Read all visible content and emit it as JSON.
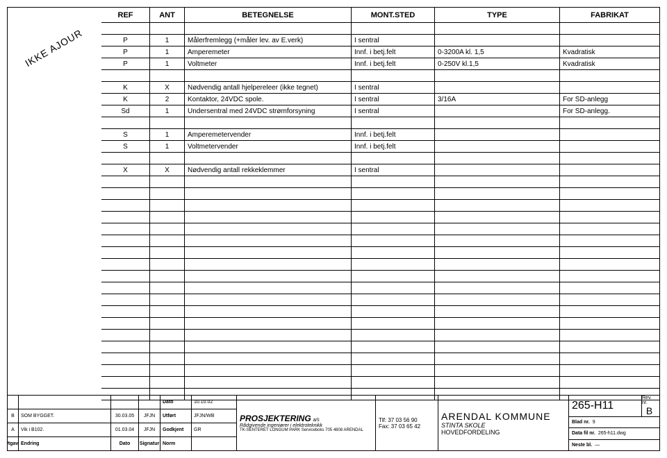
{
  "stamp_text": "IKKE AJOUR",
  "columns": {
    "ref": "REF",
    "ant": "ANT",
    "betegnelse": "BETEGNELSE",
    "mont_sted": "MONT.STED",
    "type": "TYPE",
    "fabrikat": "FABRIKAT"
  },
  "groups": [
    {
      "rows": [
        {
          "ref": "P",
          "ant": "1",
          "bet": "Målerfremlegg (+måler lev. av E.verk)",
          "mont": "I sentral",
          "type": "",
          "fab": ""
        },
        {
          "ref": "P",
          "ant": "1",
          "bet": "Amperemeter",
          "mont": "Innf. i betj.felt",
          "type": "0-3200A kl. 1,5",
          "fab": "Kvadratisk"
        },
        {
          "ref": "P",
          "ant": "1",
          "bet": "Voltmeter",
          "mont": "Innf. i betj.felt",
          "type": "0-250V kl.1,5",
          "fab": "Kvadratisk"
        }
      ]
    },
    {
      "rows": [
        {
          "ref": "K",
          "ant": "X",
          "bet": "Nødvendig antall hjelpereleer (ikke tegnet)",
          "mont": "I sentral",
          "type": "",
          "fab": ""
        },
        {
          "ref": "K",
          "ant": "2",
          "bet": "Kontaktor, 24VDC spole.",
          "mont": "I sentral",
          "type": "3/16A",
          "fab": "For SD-anlegg"
        },
        {
          "ref": "Sd",
          "ant": "1",
          "bet": "Undersentral med 24VDC strømforsyning",
          "mont": "I sentral",
          "type": "",
          "fab": "For SD-anlegg."
        }
      ]
    },
    {
      "rows": [
        {
          "ref": "S",
          "ant": "1",
          "bet": "Amperemetervender",
          "mont": "Innf. i betj.felt",
          "type": "",
          "fab": ""
        },
        {
          "ref": "S",
          "ant": "1",
          "bet": "Voltmetervender",
          "mont": "Innf. i betj.felt",
          "type": "",
          "fab": ""
        }
      ]
    },
    {
      "rows": [
        {
          "ref": "X",
          "ant": "X",
          "bet": "Nødvendig antall rekkeklemmer",
          "mont": "I sentral",
          "type": "",
          "fab": ""
        }
      ]
    }
  ],
  "empty_rows_after": 18,
  "revisions": {
    "header": {
      "a": "Utgave",
      "b": "Endring",
      "c": "Dato",
      "d": "Signatur"
    },
    "rows": [
      {
        "a": "",
        "b": "",
        "c": "",
        "d": ""
      },
      {
        "a": "B",
        "b": "SOM BYGGET.",
        "c": "30.03.05",
        "d": "JFJN"
      },
      {
        "a": "A",
        "b": "Vik i B102.",
        "c": "01.03.04",
        "d": "JFJN"
      }
    ]
  },
  "approve": {
    "rows": [
      {
        "label": "Dato",
        "val": "10.10.02"
      },
      {
        "label": "Utført",
        "val": "JFJN/WB"
      },
      {
        "label": "Godkjent",
        "val": "GR"
      },
      {
        "label": "Norm",
        "val": ""
      }
    ]
  },
  "company": {
    "name": "PROSJEKTERING",
    "suffix": "a/s",
    "sub": "Rådgivende ingeniører i elektroteknikk",
    "addr": "TK-SENTERET LONGUM PARK Serviceboks 705 4808 ARENDAL"
  },
  "contact": {
    "tlf": "Tlf: 37 03 56 90",
    "fax": "Fax: 37 03 65 42"
  },
  "project": {
    "main": "ARENDAL KOMMUNE",
    "sub": "STINTA SKOLE",
    "sub2": "HOVEDFORDELING"
  },
  "drawnum": {
    "num": "265-H11",
    "rev_label": "Rev. nr.",
    "rev": "B",
    "blad_label": "Blad nr.",
    "blad": "9",
    "file_label": "Data fil nr.",
    "file": "265-h11.dwg",
    "neste_label": "Neste bl.",
    "neste": "—"
  }
}
